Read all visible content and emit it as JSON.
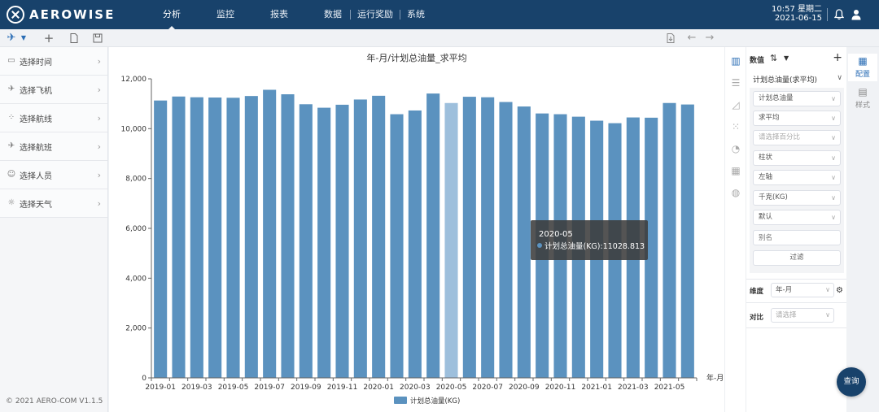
{
  "header": {
    "brand": "AEROWISE",
    "nav": [
      "分析",
      "监控",
      "报表",
      "数据",
      "运行奖励",
      "系统"
    ],
    "active_nav": 0,
    "time": "10:57 星期二",
    "date": "2021-06-15"
  },
  "sidebar": {
    "items": [
      {
        "label": "选择时间",
        "icon": "calendar-icon"
      },
      {
        "label": "选择飞机",
        "icon": "plane-icon"
      },
      {
        "label": "选择航线",
        "icon": "route-icon"
      },
      {
        "label": "选择航班",
        "icon": "flight-icon"
      },
      {
        "label": "选择人员",
        "icon": "person-icon"
      },
      {
        "label": "选择天气",
        "icon": "sun-icon"
      }
    ],
    "copyright": "© 2021 AERO-COM V1.1.5"
  },
  "panel": {
    "title": "数值",
    "series_name": "计划总油量(求平均)",
    "selects": [
      {
        "value": "计划总油量",
        "placeholder": false
      },
      {
        "value": "求平均",
        "placeholder": false
      },
      {
        "value": "请选择百分比",
        "placeholder": true
      },
      {
        "value": "柱状",
        "placeholder": false
      },
      {
        "value": "左轴",
        "placeholder": false
      },
      {
        "value": "千克(KG)",
        "placeholder": false
      },
      {
        "value": "默认",
        "placeholder": false
      }
    ],
    "alias_placeholder": "别名",
    "filter_label": "过滤",
    "dimension_label": "维度",
    "dimension_value": "年-月",
    "compare_label": "对比",
    "compare_placeholder": "请选择"
  },
  "right_tabs": [
    {
      "label": "配置",
      "active": true
    },
    {
      "label": "样式",
      "active": false
    }
  ],
  "query_label": "查询",
  "tooltip": {
    "title": "2020-05",
    "text": "计划总油量(KG):11028.813",
    "index": 16
  },
  "chart_data": {
    "type": "bar",
    "title": "年-月/计划总油量_求平均",
    "xlabel": "年-月",
    "ylabel": "",
    "ylim": [
      0,
      12000
    ],
    "yticks": [
      0,
      2000,
      4000,
      6000,
      8000,
      10000,
      12000
    ],
    "ytick_labels": [
      "0",
      "2,000",
      "4,000",
      "6,000",
      "8,000",
      "10,000",
      "12,000"
    ],
    "grid": false,
    "legend": "bottom-center",
    "color": "#5b92bf",
    "highlight_color": "#9dbfdc",
    "categories": [
      "2019-01",
      "2019-02",
      "2019-03",
      "2019-04",
      "2019-05",
      "2019-06",
      "2019-07",
      "2019-08",
      "2019-09",
      "2019-10",
      "2019-11",
      "2019-12",
      "2020-01",
      "2020-02",
      "2020-03",
      "2020-04",
      "2020-05",
      "2020-06",
      "2020-07",
      "2020-08",
      "2020-09",
      "2020-10",
      "2020-11",
      "2020-12",
      "2021-01",
      "2021-02",
      "2021-03",
      "2021-04",
      "2021-05",
      "2021-06"
    ],
    "x_tick_labels": [
      "2019-01",
      "2019-03",
      "2019-05",
      "2019-07",
      "2019-09",
      "2019-11",
      "2020-01",
      "2020-03",
      "2020-05",
      "2020-07",
      "2020-09",
      "2020-11",
      "2021-01",
      "2021-03",
      "2021-05"
    ],
    "series": [
      {
        "name": "计划总油量(KG)",
        "values": [
          11130,
          11290,
          11260,
          11250,
          11240,
          11310,
          11560,
          11380,
          10980,
          10840,
          10960,
          11170,
          11320,
          10580,
          10730,
          11410,
          11029,
          11280,
          11260,
          11070,
          10890,
          10610,
          10580,
          10480,
          10320,
          10220,
          10450,
          10440,
          11030,
          10970
        ]
      }
    ]
  }
}
